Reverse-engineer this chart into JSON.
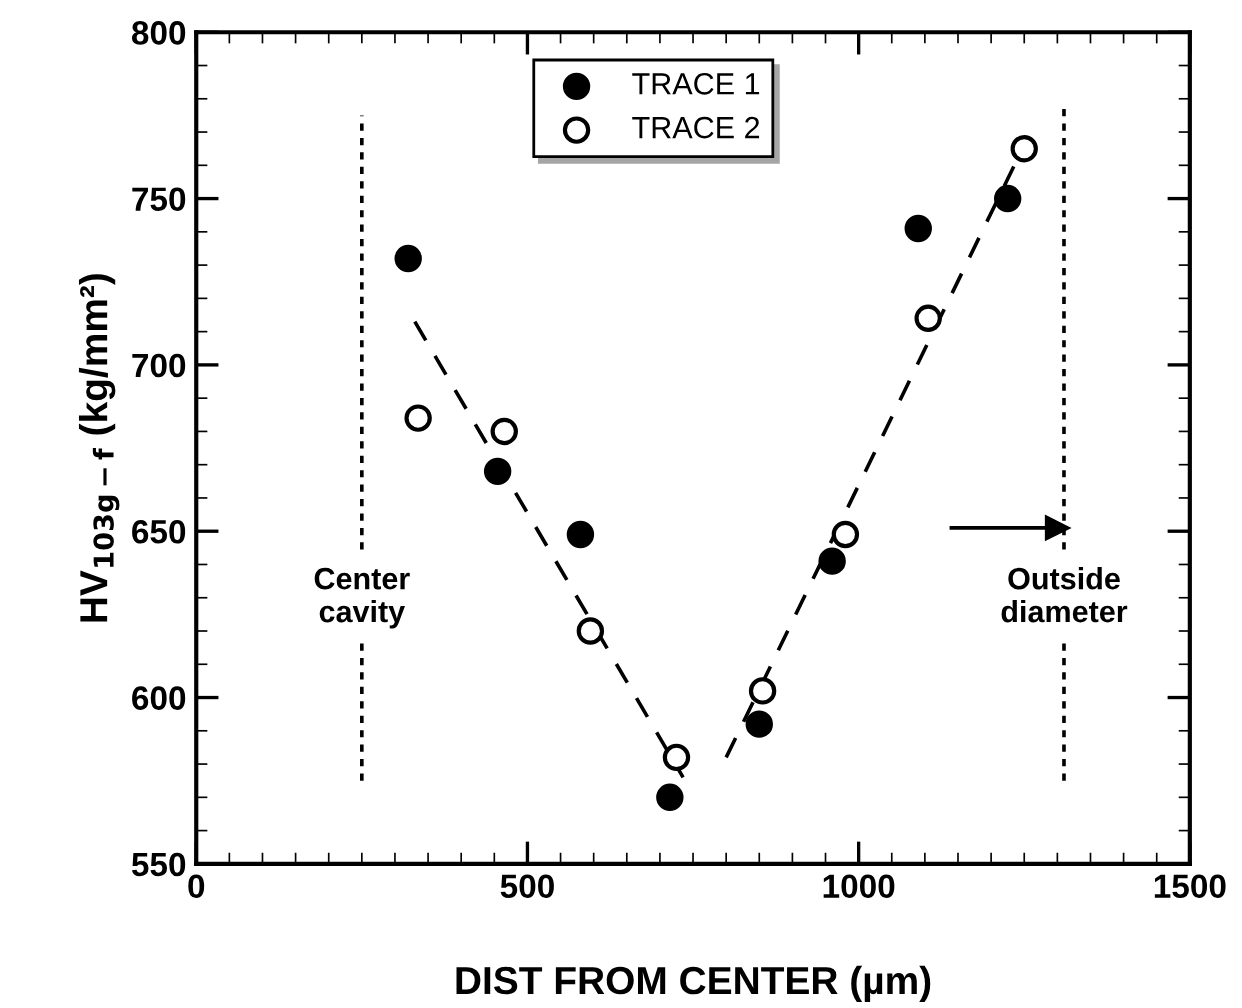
{
  "chart_data": {
    "type": "scatter",
    "xlabel": "DIST FROM CENTER (µm)",
    "ylabel": "HV$_{103g−f}$ (kg/mm²)",
    "xlim": [
      0,
      1500
    ],
    "xticks": [
      0,
      500,
      1000,
      1500
    ],
    "ylim": [
      550,
      800
    ],
    "yticks": [
      550,
      600,
      650,
      700,
      750,
      800
    ],
    "legend": "top",
    "grid": false,
    "series": [
      {
        "name": "TRACE 1",
        "color": "#000000",
        "marker": "circle",
        "x": [
          320,
          455,
          580,
          715,
          850,
          960,
          1090,
          1225
        ],
        "values": [
          732,
          668,
          649,
          570,
          592,
          641,
          741,
          750
        ]
      },
      {
        "name": "TRACE 2",
        "color": "#ffffff",
        "marker": "circle",
        "x": [
          335,
          465,
          595,
          725,
          855,
          980,
          1105,
          1250
        ],
        "values": [
          684,
          680,
          620,
          582,
          602,
          649,
          714,
          765
        ]
      },
      {
        "type": "line",
        "color": "#000000",
        "line_style": "dashed",
        "x": [
          330,
          735
        ],
        "values": [
          713,
          576
        ]
      },
      {
        "type": "line",
        "color": "#000000",
        "line_style": "dashed",
        "x": [
          800,
          1235
        ],
        "values": [
          582,
          760
        ]
      },
      {
        "type": "line",
        "color": "#000000",
        "line_style": "dotted",
        "x": [
          250,
          250
        ],
        "values": [
          575,
          775
        ]
      },
      {
        "type": "line",
        "color": "#000000",
        "line_style": "dotted",
        "x": [
          1310,
          1310
        ],
        "values": [
          575,
          777
        ]
      },
      {
        "type": "line",
        "color": "#000000",
        "line_style": "solid",
        "marker": "triangle",
        "x": [
          1140,
          1300
        ],
        "values": [
          651,
          651
        ]
      }
    ],
    "annotations": [
      {
        "text": "Center\ncavity",
        "x": 250,
        "y": 630
      },
      {
        "text": "Outside\ndiameter",
        "x": 1310,
        "y": 630
      }
    ]
  }
}
